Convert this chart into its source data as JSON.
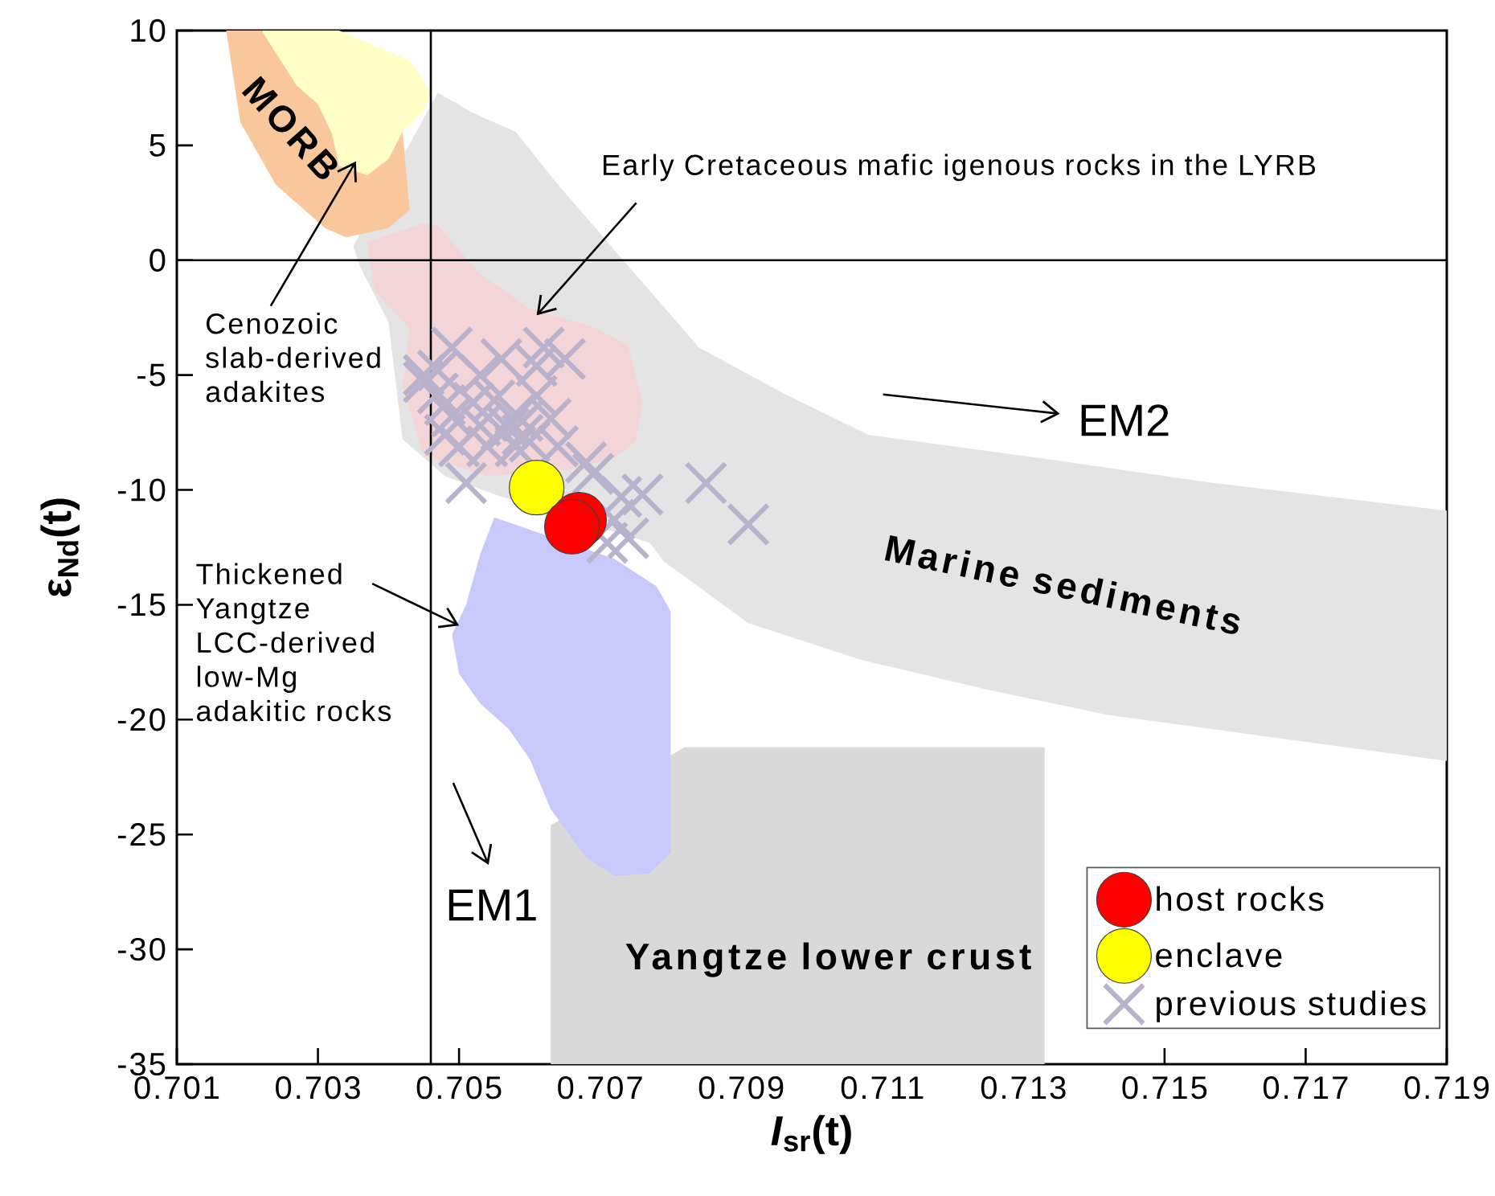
{
  "chart_data": {
    "type": "scatter",
    "xlabel": "*I*$_{sr}$(t)",
    "ylabel": "ε$_{Nd}$(t)",
    "xlim": [
      0.701,
      0.719
    ],
    "ylim": [
      -35,
      10
    ],
    "xticks": [
      0.701,
      0.703,
      0.705,
      0.707,
      0.709,
      0.711,
      0.713,
      0.715,
      0.717,
      0.719
    ],
    "yticks": [
      -35,
      -30,
      -25,
      -20,
      -15,
      -10,
      -5,
      0,
      5,
      10
    ],
    "legend": "bottom right",
    "ref_lines": [
      {
        "axis": "x",
        "value": 0.7046,
        "color": "#000000"
      },
      {
        "axis": "y",
        "value": 0,
        "color": "#000000"
      }
    ],
    "annotations": [
      "MORB",
      "Cenozoic slab-derived adakites",
      {
        "text": "Early Cretaceous mafic igenous rocks in the LYRB",
        "x": 0.7061,
        "y": -2.4
      },
      "EM2",
      "Marine sediments",
      {
        "text": "Thickened Yangtze LCC-derived low-Mg adakitic rocks",
        "x": 0.705,
        "y": -15.9
      },
      "EM1",
      "Yangtze lower crust"
    ],
    "series": [
      {
        "type": "area",
        "color": "#e4e4e4",
        "x": [
          0.7047,
          0.7052,
          0.7058,
          0.7064,
          0.7073,
          0.7084,
          0.7096,
          0.7108,
          0.7132,
          0.7157,
          0.719,
          0.719,
          0.7166,
          0.7142,
          0.7125,
          0.7107,
          0.7091,
          0.7079,
          0.7077,
          0.7056,
          0.7048,
          0.7042,
          0.704,
          0.7036,
          0.7035
        ],
        "values": [
          7.3,
          6.4,
          5.6,
          3.3,
          0.1,
          -3.8,
          -5.8,
          -7.6,
          -8.6,
          -9.7,
          -10.9,
          -21.8,
          -20.8,
          -19.8,
          -18.7,
          -17.4,
          -15.8,
          -13.1,
          -12.3,
          -10.3,
          -9.4,
          -7.8,
          -2.7,
          -0.3,
          0.6
        ]
      },
      {
        "type": "area",
        "color": "#d9d9d9",
        "x": [
          0.7063,
          0.7063,
          0.7082,
          0.7133,
          0.7133
        ],
        "values": [
          -35,
          -24.6,
          -21.2,
          -21.2,
          -35
        ]
      },
      {
        "type": "area",
        "color": "#f3d5d7",
        "x": [
          0.7037,
          0.7041,
          0.7045,
          0.7047,
          0.7053,
          0.706,
          0.7069,
          0.7074,
          0.7076,
          0.7075,
          0.7072,
          0.7066,
          0.7054,
          0.7045,
          0.7042,
          0.7043,
          0.7038
        ],
        "values": [
          0.8,
          1.2,
          1.6,
          1.5,
          -0.6,
          -2.1,
          -2.9,
          -3.7,
          -6.2,
          -7.9,
          -8.6,
          -9.1,
          -9.4,
          -8.5,
          -5.5,
          -3.0,
          -1.3
        ]
      },
      {
        "type": "area",
        "color": "#c8c8fa",
        "x": [
          0.7055,
          0.7053,
          0.7051,
          0.7049,
          0.705,
          0.7053,
          0.7057,
          0.706,
          0.7063,
          0.7068,
          0.7072,
          0.7077,
          0.708,
          0.708,
          0.7078,
          0.7072
        ],
        "values": [
          -11.2,
          -12.8,
          -15.0,
          -16.3,
          -18.0,
          -19.3,
          -20.4,
          -21.7,
          -23.9,
          -26.0,
          -26.8,
          -26.7,
          -25.8,
          -15.3,
          -14.2,
          -13.0
        ]
      },
      {
        "type": "area",
        "color": "#ffffc6",
        "x": [
          0.7022,
          0.7033,
          0.7043,
          0.7046,
          0.7045,
          0.7042,
          0.704,
          0.7037,
          0.7033,
          0.7032,
          0.703,
          0.7027
        ],
        "values": [
          10,
          10,
          8.7,
          7.3,
          6.5,
          5.6,
          4.4,
          3.7,
          4.1,
          5.5,
          6.8,
          7.6
        ]
      },
      {
        "type": "area",
        "color": "#f9c79b",
        "x": [
          0.7017,
          0.7022,
          0.7027,
          0.703,
          0.7032,
          0.7033,
          0.7037,
          0.704,
          0.7042,
          0.7043,
          0.704,
          0.7034,
          0.7031,
          0.7024,
          0.7019
        ],
        "values": [
          10,
          10,
          7.6,
          6.8,
          5.5,
          4.1,
          3.7,
          4.4,
          5.6,
          2.2,
          1.4,
          1.0,
          1.4,
          3.3,
          6.0
        ]
      },
      {
        "name": "host rocks",
        "marker": "circle",
        "color": "#ff0000",
        "x": [
          0.7067,
          0.7066
        ],
        "values": [
          -11.3,
          -11.6
        ]
      },
      {
        "name": "enclave",
        "marker": "circle",
        "color": "#ffff00",
        "x": [
          0.7061
        ],
        "values": [
          -9.9
        ]
      },
      {
        "name": "previous studies",
        "marker": "cross",
        "color": "#b8b2cc",
        "x": [
          0.7049,
          0.7047,
          0.7045,
          0.7047,
          0.7056,
          0.7062,
          0.7065,
          0.7061,
          0.7052,
          0.7049,
          0.7048,
          0.7055,
          0.7058,
          0.7059,
          0.7056,
          0.7061,
          0.7063,
          0.7058,
          0.7051,
          0.7064,
          0.7068,
          0.7069,
          0.7073,
          0.7076,
          0.7085,
          0.7091,
          0.7074,
          0.7072,
          0.7053,
          0.7054,
          0.7059,
          0.7048,
          0.705,
          0.7071,
          0.7053,
          0.7045,
          0.706,
          0.7057
        ],
        "values": [
          -3.8,
          -4.8,
          -5.3,
          -5.8,
          -4.3,
          -3.8,
          -4.3,
          -4.6,
          -6.2,
          -6.8,
          -7.6,
          -6.1,
          -6.7,
          -7.0,
          -7.4,
          -5.9,
          -6.9,
          -8.1,
          -9.7,
          -8.1,
          -8.8,
          -9.3,
          -10.3,
          -10.2,
          -9.7,
          -11.5,
          -12.1,
          -11.3,
          -7.2,
          -8.1,
          -7.6,
          -6.3,
          -8.1,
          -12.3,
          -5.0,
          -5.0,
          -7.9,
          -7.3
        ]
      }
    ]
  }
}
